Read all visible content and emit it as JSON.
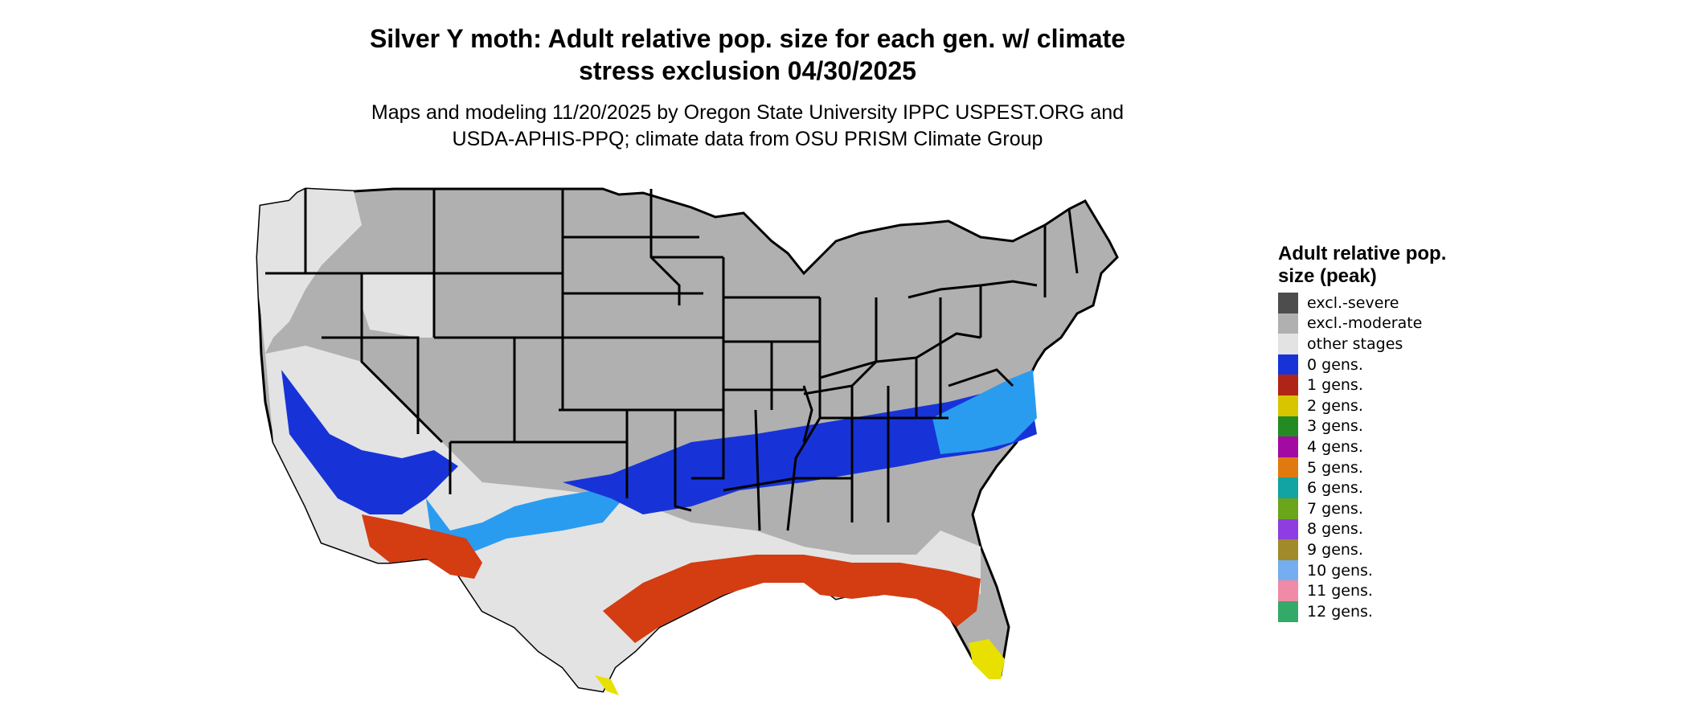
{
  "title_line1": "Silver Y moth: Adult relative pop. size for each gen. w/ climate",
  "title_line2": "stress exclusion 04/30/2025",
  "subtitle_line1": "Maps and modeling 11/20/2025 by Oregon State University IPPC USPEST.ORG and",
  "subtitle_line2": "USDA-APHIS-PPQ; climate data from OSU PRISM Climate Group",
  "legend": {
    "title": "Adult relative pop. size (peak)",
    "items": [
      {
        "label": "excl.-severe",
        "color": "#4d4d4d"
      },
      {
        "label": "excl.-moderate",
        "color": "#b0b0b0"
      },
      {
        "label": "other stages",
        "color": "#e3e3e3"
      },
      {
        "label": "0 gens.",
        "color": "#1733d8"
      },
      {
        "label": "1 gens.",
        "color": "#b02418"
      },
      {
        "label": "2 gens.",
        "color": "#d9c400"
      },
      {
        "label": "3 gens.",
        "color": "#238b22"
      },
      {
        "label": "4 gens.",
        "color": "#a30aa3"
      },
      {
        "label": "5 gens.",
        "color": "#e07a10"
      },
      {
        "label": "6 gens.",
        "color": "#12a3a3"
      },
      {
        "label": "7 gens.",
        "color": "#6aa51a"
      },
      {
        "label": "8 gens.",
        "color": "#8e3ee0"
      },
      {
        "label": "9 gens.",
        "color": "#a08a2a"
      },
      {
        "label": "10 gens.",
        "color": "#74aef0"
      },
      {
        "label": "11 gens.",
        "color": "#f08aa6"
      },
      {
        "label": "12 gens.",
        "color": "#34aa68"
      }
    ]
  },
  "map_colors": {
    "moderate": "#b0b0b0",
    "other": "#e3e3e3",
    "gen0_dark": "#1733d8",
    "gen0_light": "#2a9cf0",
    "gen1": "#d43c12",
    "gen2": "#e8e000",
    "border": "#000000"
  }
}
